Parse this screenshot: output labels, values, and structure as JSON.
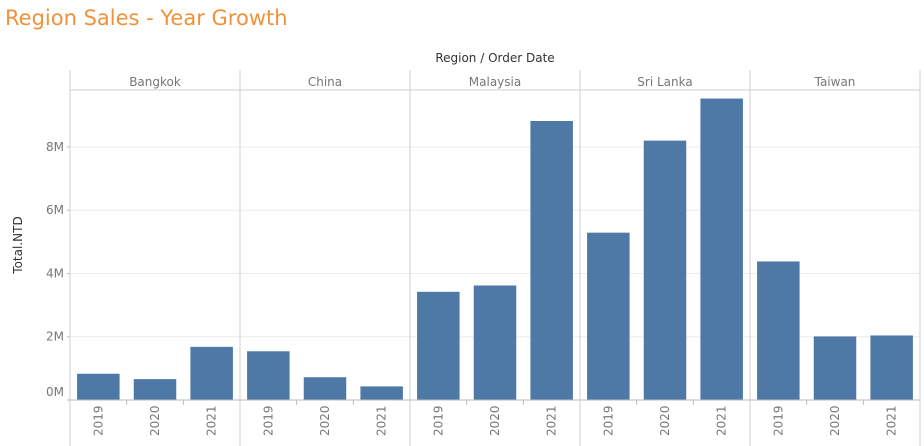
{
  "title": "Region Sales - Year Growth",
  "colors": {
    "title": "#f0923b",
    "bar": "#4e79a7",
    "text": "#333333",
    "muted": "#777777",
    "grid": "#ececec",
    "divider": "#cfcfcf"
  },
  "chart_data": {
    "type": "bar",
    "column_header": "Region  /  Order Date",
    "ylabel": "Total.NTD",
    "ylim": [
      0,
      9800000
    ],
    "y_ticks": [
      0,
      2000000,
      4000000,
      6000000,
      8000000
    ],
    "y_tick_labels": [
      "0M",
      "2M",
      "4M",
      "6M",
      "8M"
    ],
    "grid": true,
    "groups": [
      {
        "region": "Bangkok",
        "categories": [
          "2019",
          "2020",
          "2021"
        ],
        "values": [
          830000,
          660000,
          1680000
        ]
      },
      {
        "region": "China",
        "categories": [
          "2019",
          "2020",
          "2021"
        ],
        "values": [
          1540000,
          720000,
          430000
        ]
      },
      {
        "region": "Malaysia",
        "categories": [
          "2019",
          "2020",
          "2021"
        ],
        "values": [
          3420000,
          3620000,
          8820000
        ]
      },
      {
        "region": "Sri Lanka",
        "categories": [
          "2019",
          "2020",
          "2021"
        ],
        "values": [
          5290000,
          8200000,
          9530000
        ]
      },
      {
        "region": "Taiwan",
        "categories": [
          "2019",
          "2020",
          "2021"
        ],
        "values": [
          4380000,
          2010000,
          2040000
        ]
      }
    ]
  }
}
